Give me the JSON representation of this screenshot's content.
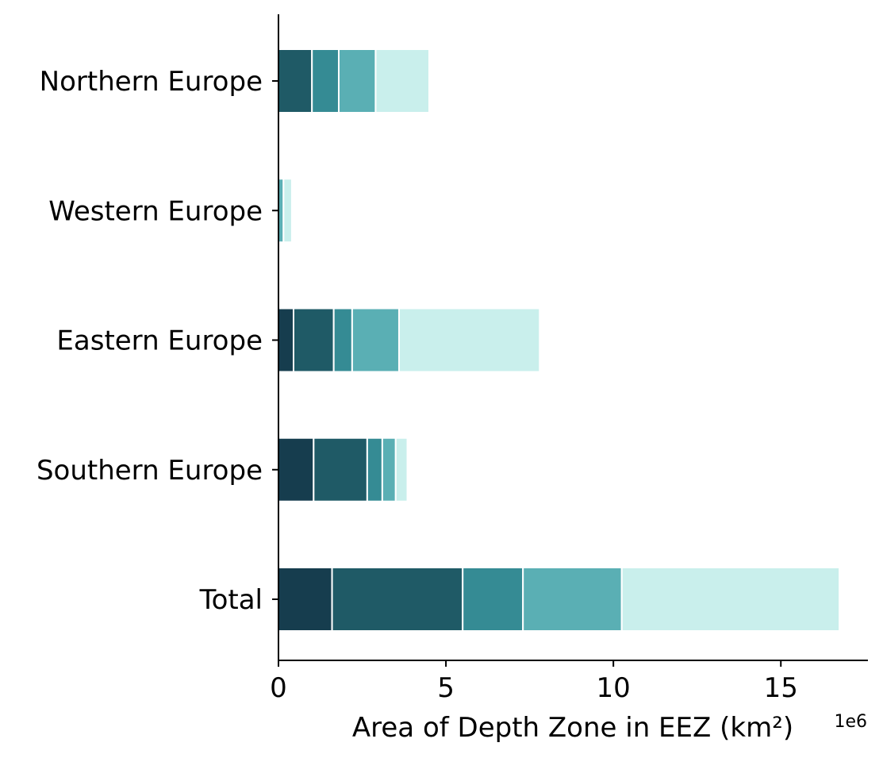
{
  "chart_data": {
    "type": "bar",
    "orientation": "horizontal",
    "stacked": true,
    "categories": [
      "Northern Europe",
      "Western Europe",
      "Eastern Europe",
      "Southern Europe",
      "Total"
    ],
    "xlabel": "Area of Depth Zone in EEZ (km²)",
    "x_offset_text": "1e6",
    "xlim": [
      0,
      17.6
    ],
    "x_ticks": [
      0,
      5,
      10,
      15
    ],
    "x_tick_labels": [
      "0",
      "5",
      "10",
      "15"
    ],
    "grid": false,
    "colors": [
      "#163d4e",
      "#1f5a66",
      "#358b94",
      "#5aafb4",
      "#c9efec"
    ],
    "series": [
      {
        "values": [
          0,
          0,
          0.45,
          1.05,
          1.6
        ]
      },
      {
        "values": [
          1.0,
          0,
          1.2,
          1.6,
          3.9
        ]
      },
      {
        "values": [
          0.8,
          0,
          0.55,
          0.45,
          1.8
        ]
      },
      {
        "values": [
          1.1,
          0.15,
          1.4,
          0.4,
          2.95
        ]
      },
      {
        "values": [
          1.6,
          0.25,
          4.2,
          0.35,
          6.5
        ]
      }
    ]
  }
}
